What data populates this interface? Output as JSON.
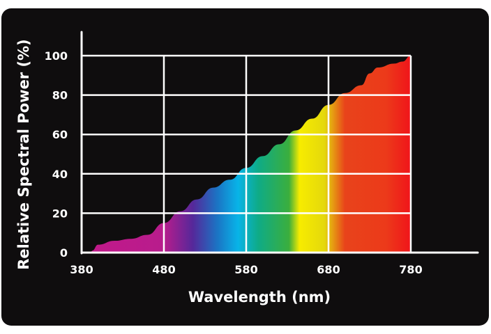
{
  "chart_data": {
    "type": "area",
    "title": "",
    "xlabel": "Wavelength (nm)",
    "ylabel": "Relative Spectral Power (%)",
    "xlim": [
      380,
      780
    ],
    "ylim": [
      0,
      100
    ],
    "xticks": [
      380,
      480,
      580,
      680,
      780
    ],
    "yticks": [
      0,
      20,
      40,
      60,
      80,
      100
    ],
    "grid": true,
    "fill": "visible-spectrum gradient",
    "x": [
      393,
      400,
      420,
      440,
      460,
      480,
      500,
      520,
      540,
      560,
      580,
      600,
      620,
      640,
      660,
      680,
      700,
      720,
      730,
      740,
      760,
      770,
      780
    ],
    "y": [
      1,
      4,
      6,
      7,
      9,
      15,
      21,
      27,
      33,
      37,
      43,
      49,
      55,
      62,
      68,
      75,
      81,
      85,
      91,
      94,
      96,
      97,
      100
    ],
    "spectrum_colors": [
      {
        "nm": 380,
        "color": "#c2198a"
      },
      {
        "nm": 480,
        "color": "#b81c8c"
      },
      {
        "nm": 515,
        "color": "#55289a"
      },
      {
        "nm": 545,
        "color": "#1b74c4"
      },
      {
        "nm": 570,
        "color": "#08b4e8"
      },
      {
        "nm": 595,
        "color": "#0fab86"
      },
      {
        "nm": 632,
        "color": "#3bae3d"
      },
      {
        "nm": 645,
        "color": "#f7ec00"
      },
      {
        "nm": 675,
        "color": "#e4d80c"
      },
      {
        "nm": 700,
        "color": "#e8431b"
      },
      {
        "nm": 750,
        "color": "#ec3a1a"
      },
      {
        "nm": 780,
        "color": "#f0141a"
      }
    ]
  }
}
